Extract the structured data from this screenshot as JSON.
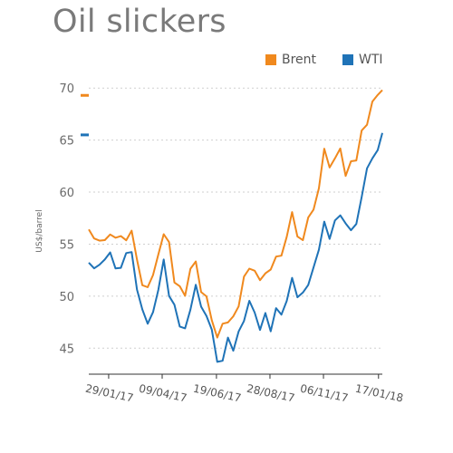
{
  "chart_data": {
    "type": "line",
    "title": "Oil slickers",
    "ylabel": "US$/barrel",
    "xlabel": "",
    "ylim": [
      42.5,
      71.5
    ],
    "yticks": [
      45,
      50,
      55,
      60,
      65,
      70
    ],
    "xticks": [
      "29/01/17",
      "09/04/17",
      "19/06/17",
      "28/08/17",
      "06/11/17",
      "17/01/18"
    ],
    "legend_position": "top-right",
    "grid": "horizontal-dotted",
    "x": [
      "2017-01-03",
      "2017-01-10",
      "2017-01-17",
      "2017-01-24",
      "2017-01-31",
      "2017-02-07",
      "2017-02-14",
      "2017-02-21",
      "2017-02-28",
      "2017-03-07",
      "2017-03-14",
      "2017-03-21",
      "2017-03-28",
      "2017-04-04",
      "2017-04-11",
      "2017-04-18",
      "2017-04-25",
      "2017-05-02",
      "2017-05-09",
      "2017-05-16",
      "2017-05-23",
      "2017-05-30",
      "2017-06-06",
      "2017-06-13",
      "2017-06-20",
      "2017-06-27",
      "2017-07-04",
      "2017-07-11",
      "2017-07-18",
      "2017-07-25",
      "2017-08-01",
      "2017-08-08",
      "2017-08-15",
      "2017-08-22",
      "2017-08-29",
      "2017-09-05",
      "2017-09-12",
      "2017-09-19",
      "2017-09-26",
      "2017-10-03",
      "2017-10-10",
      "2017-10-17",
      "2017-10-24",
      "2017-10-31",
      "2017-11-07",
      "2017-11-14",
      "2017-11-21",
      "2017-11-28",
      "2017-12-05",
      "2017-12-12",
      "2017-12-19",
      "2017-12-26",
      "2018-01-02",
      "2018-01-09",
      "2018-01-16",
      "2018-01-22"
    ],
    "series": [
      {
        "name": "Brent",
        "color": "#f0891e",
        "last_value": 69.3,
        "values": [
          56.4,
          55.3,
          55.6,
          55.9,
          56.3,
          55.8,
          56.0,
          55.9,
          56.0,
          53.1,
          51.2,
          51.0,
          52.0,
          54.6,
          56.0,
          54.9,
          51.6,
          50.6,
          49.8,
          52.2,
          53.8,
          50.6,
          49.8,
          48.2,
          45.6,
          47.2,
          48.0,
          47.6,
          49.4,
          51.8,
          52.5,
          52.2,
          51.2,
          51.8,
          52.2,
          53.6,
          54.3,
          55.8,
          58.0,
          56.0,
          55.6,
          57.9,
          58.3,
          60.7,
          63.7,
          62.8,
          63.3,
          63.8,
          62.1,
          63.3,
          63.5,
          66.2,
          66.6,
          68.8,
          69.8,
          69.3
        ]
      },
      {
        "name": "WTI",
        "color": "#1f73b7",
        "last_value": 65.5,
        "values": [
          53.0,
          52.6,
          52.6,
          53.2,
          53.8,
          52.8,
          53.2,
          53.8,
          54.0,
          50.3,
          48.2,
          47.7,
          48.8,
          50.8,
          53.1,
          50.4,
          49.2,
          47.3,
          46.6,
          48.5,
          51.0,
          48.5,
          47.6,
          46.2,
          43.4,
          44.2,
          46.0,
          45.2,
          46.1,
          48.0,
          49.2,
          49.0,
          47.3,
          48.2,
          46.8,
          48.3,
          48.4,
          49.8,
          52.0,
          50.2,
          50.8,
          51.6,
          52.4,
          54.3,
          57.2,
          56.0,
          56.8,
          57.8,
          57.3,
          56.8,
          57.4,
          59.8,
          61.8,
          63.2,
          64.1,
          65.5
        ]
      }
    ]
  }
}
